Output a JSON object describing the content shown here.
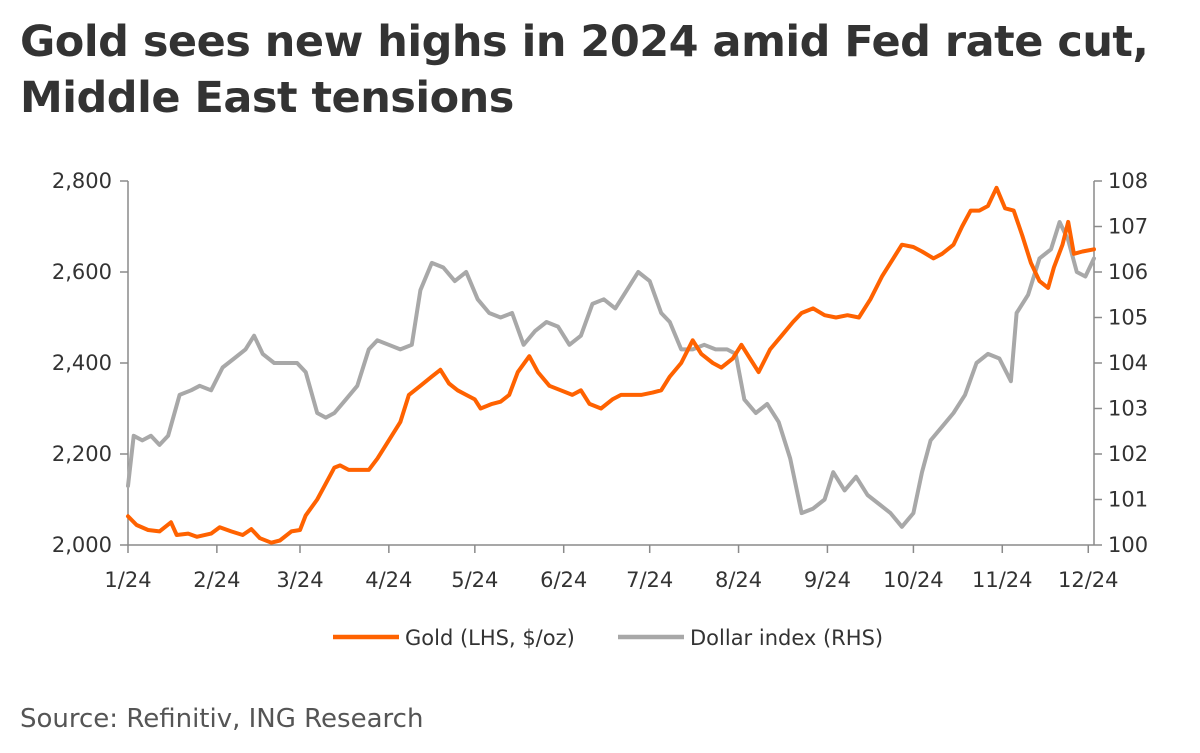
{
  "chart_data": {
    "type": "line",
    "title": "Gold sees new highs in 2024 amid Fed rate cut, Middle East tensions",
    "source": "Source: Refinitiv, ING Research",
    "x_tick_labels": [
      "1/24",
      "2/24",
      "3/24",
      "4/24",
      "5/24",
      "6/24",
      "7/24",
      "8/24",
      "9/24",
      "10/24",
      "11/24",
      "12/24"
    ],
    "x_range": [
      "2024-01-01",
      "2024-12-03"
    ],
    "y_left": {
      "ticks": [
        2000,
        2200,
        2400,
        2600,
        2800
      ],
      "tick_labels": [
        "2,000",
        "2,200",
        "2,400",
        "2,600",
        "2,800"
      ],
      "ylim": [
        2000,
        2800
      ]
    },
    "y_right": {
      "ticks": [
        100,
        101,
        102,
        103,
        104,
        105,
        106,
        107,
        108
      ],
      "tick_labels": [
        "100",
        "101",
        "102",
        "103",
        "104",
        "105",
        "106",
        "107",
        "108"
      ],
      "ylim": [
        100,
        108
      ]
    },
    "grid": false,
    "legend_position": "bottom",
    "series": [
      {
        "name": "Gold (LHS, $/oz)",
        "axis": "left",
        "color": "#ff6200",
        "points": [
          [
            "2024-01-01",
            2063
          ],
          [
            "2024-01-04",
            2044
          ],
          [
            "2024-01-08",
            2033
          ],
          [
            "2024-01-12",
            2030
          ],
          [
            "2024-01-16",
            2050
          ],
          [
            "2024-01-18",
            2022
          ],
          [
            "2024-01-22",
            2025
          ],
          [
            "2024-01-25",
            2018
          ],
          [
            "2024-01-30",
            2025
          ],
          [
            "2024-02-02",
            2039
          ],
          [
            "2024-02-06",
            2030
          ],
          [
            "2024-02-10",
            2022
          ],
          [
            "2024-02-13",
            2035
          ],
          [
            "2024-02-16",
            2015
          ],
          [
            "2024-02-20",
            2005
          ],
          [
            "2024-02-23",
            2010
          ],
          [
            "2024-02-27",
            2030
          ],
          [
            "2024-03-01",
            2033
          ],
          [
            "2024-03-03",
            2065
          ],
          [
            "2024-03-07",
            2100
          ],
          [
            "2024-03-10",
            2135
          ],
          [
            "2024-03-13",
            2170
          ],
          [
            "2024-03-15",
            2175
          ],
          [
            "2024-03-18",
            2165
          ],
          [
            "2024-03-22",
            2165
          ],
          [
            "2024-03-25",
            2165
          ],
          [
            "2024-03-28",
            2190
          ],
          [
            "2024-04-01",
            2230
          ],
          [
            "2024-04-05",
            2270
          ],
          [
            "2024-04-08",
            2330
          ],
          [
            "2024-04-12",
            2350
          ],
          [
            "2024-04-16",
            2370
          ],
          [
            "2024-04-19",
            2385
          ],
          [
            "2024-04-22",
            2355
          ],
          [
            "2024-04-25",
            2340
          ],
          [
            "2024-04-28",
            2330
          ],
          [
            "2024-05-01",
            2320
          ],
          [
            "2024-05-03",
            2300
          ],
          [
            "2024-05-07",
            2310
          ],
          [
            "2024-05-10",
            2315
          ],
          [
            "2024-05-13",
            2330
          ],
          [
            "2024-05-16",
            2380
          ],
          [
            "2024-05-20",
            2415
          ],
          [
            "2024-05-23",
            2380
          ],
          [
            "2024-05-27",
            2350
          ],
          [
            "2024-05-31",
            2340
          ],
          [
            "2024-06-04",
            2330
          ],
          [
            "2024-06-07",
            2340
          ],
          [
            "2024-06-10",
            2310
          ],
          [
            "2024-06-14",
            2300
          ],
          [
            "2024-06-18",
            2320
          ],
          [
            "2024-06-21",
            2330
          ],
          [
            "2024-06-24",
            2330
          ],
          [
            "2024-06-28",
            2330
          ],
          [
            "2024-07-02",
            2335
          ],
          [
            "2024-07-05",
            2340
          ],
          [
            "2024-07-08",
            2370
          ],
          [
            "2024-07-12",
            2400
          ],
          [
            "2024-07-16",
            2450
          ],
          [
            "2024-07-19",
            2420
          ],
          [
            "2024-07-23",
            2400
          ],
          [
            "2024-07-26",
            2390
          ],
          [
            "2024-07-30",
            2410
          ],
          [
            "2024-08-02",
            2440
          ],
          [
            "2024-08-05",
            2410
          ],
          [
            "2024-08-08",
            2380
          ],
          [
            "2024-08-12",
            2430
          ],
          [
            "2024-08-16",
            2460
          ],
          [
            "2024-08-20",
            2490
          ],
          [
            "2024-08-23",
            2510
          ],
          [
            "2024-08-27",
            2520
          ],
          [
            "2024-08-31",
            2505
          ],
          [
            "2024-09-04",
            2500
          ],
          [
            "2024-09-08",
            2505
          ],
          [
            "2024-09-12",
            2500
          ],
          [
            "2024-09-16",
            2540
          ],
          [
            "2024-09-20",
            2590
          ],
          [
            "2024-09-24",
            2630
          ],
          [
            "2024-09-27",
            2660
          ],
          [
            "2024-10-01",
            2655
          ],
          [
            "2024-10-04",
            2645
          ],
          [
            "2024-10-08",
            2630
          ],
          [
            "2024-10-11",
            2640
          ],
          [
            "2024-10-15",
            2660
          ],
          [
            "2024-10-18",
            2700
          ],
          [
            "2024-10-21",
            2735
          ],
          [
            "2024-10-24",
            2735
          ],
          [
            "2024-10-27",
            2745
          ],
          [
            "2024-10-30",
            2785
          ],
          [
            "2024-11-02",
            2740
          ],
          [
            "2024-11-05",
            2735
          ],
          [
            "2024-11-08",
            2680
          ],
          [
            "2024-11-11",
            2620
          ],
          [
            "2024-11-14",
            2580
          ],
          [
            "2024-11-17",
            2565
          ],
          [
            "2024-11-19",
            2610
          ],
          [
            "2024-11-22",
            2660
          ],
          [
            "2024-11-24",
            2710
          ],
          [
            "2024-11-26",
            2640
          ],
          [
            "2024-11-29",
            2645
          ],
          [
            "2024-12-03",
            2650
          ]
        ]
      },
      {
        "name": "Dollar index (RHS)",
        "axis": "right",
        "color": "#a8a8a8",
        "points": [
          [
            "2024-01-01",
            101.3
          ],
          [
            "2024-01-03",
            102.4
          ],
          [
            "2024-01-06",
            102.3
          ],
          [
            "2024-01-09",
            102.4
          ],
          [
            "2024-01-12",
            102.2
          ],
          [
            "2024-01-15",
            102.4
          ],
          [
            "2024-01-19",
            103.3
          ],
          [
            "2024-01-23",
            103.4
          ],
          [
            "2024-01-26",
            103.5
          ],
          [
            "2024-01-30",
            103.4
          ],
          [
            "2024-02-03",
            103.9
          ],
          [
            "2024-02-07",
            104.1
          ],
          [
            "2024-02-11",
            104.3
          ],
          [
            "2024-02-14",
            104.6
          ],
          [
            "2024-02-17",
            104.2
          ],
          [
            "2024-02-21",
            104.0
          ],
          [
            "2024-02-25",
            104.0
          ],
          [
            "2024-02-29",
            104.0
          ],
          [
            "2024-03-03",
            103.8
          ],
          [
            "2024-03-07",
            102.9
          ],
          [
            "2024-03-10",
            102.8
          ],
          [
            "2024-03-13",
            102.9
          ],
          [
            "2024-03-17",
            103.2
          ],
          [
            "2024-03-21",
            103.5
          ],
          [
            "2024-03-25",
            104.3
          ],
          [
            "2024-03-28",
            104.5
          ],
          [
            "2024-04-01",
            104.4
          ],
          [
            "2024-04-05",
            104.3
          ],
          [
            "2024-04-09",
            104.4
          ],
          [
            "2024-04-12",
            105.6
          ],
          [
            "2024-04-16",
            106.2
          ],
          [
            "2024-04-20",
            106.1
          ],
          [
            "2024-04-24",
            105.8
          ],
          [
            "2024-04-28",
            106.0
          ],
          [
            "2024-05-02",
            105.4
          ],
          [
            "2024-05-06",
            105.1
          ],
          [
            "2024-05-10",
            105.0
          ],
          [
            "2024-05-14",
            105.1
          ],
          [
            "2024-05-18",
            104.4
          ],
          [
            "2024-05-22",
            104.7
          ],
          [
            "2024-05-26",
            104.9
          ],
          [
            "2024-05-30",
            104.8
          ],
          [
            "2024-06-03",
            104.4
          ],
          [
            "2024-06-07",
            104.6
          ],
          [
            "2024-06-11",
            105.3
          ],
          [
            "2024-06-15",
            105.4
          ],
          [
            "2024-06-19",
            105.2
          ],
          [
            "2024-06-23",
            105.6
          ],
          [
            "2024-06-27",
            106.0
          ],
          [
            "2024-07-01",
            105.8
          ],
          [
            "2024-07-05",
            105.1
          ],
          [
            "2024-07-08",
            104.9
          ],
          [
            "2024-07-12",
            104.3
          ],
          [
            "2024-07-16",
            104.3
          ],
          [
            "2024-07-20",
            104.4
          ],
          [
            "2024-07-24",
            104.3
          ],
          [
            "2024-07-28",
            104.3
          ],
          [
            "2024-07-31",
            104.2
          ],
          [
            "2024-08-03",
            103.2
          ],
          [
            "2024-08-07",
            102.9
          ],
          [
            "2024-08-11",
            103.1
          ],
          [
            "2024-08-15",
            102.7
          ],
          [
            "2024-08-19",
            101.9
          ],
          [
            "2024-08-23",
            100.7
          ],
          [
            "2024-08-27",
            100.8
          ],
          [
            "2024-08-31",
            101.0
          ],
          [
            "2024-09-03",
            101.6
          ],
          [
            "2024-09-07",
            101.2
          ],
          [
            "2024-09-11",
            101.5
          ],
          [
            "2024-09-15",
            101.1
          ],
          [
            "2024-09-19",
            100.9
          ],
          [
            "2024-09-23",
            100.7
          ],
          [
            "2024-09-27",
            100.4
          ],
          [
            "2024-10-01",
            100.7
          ],
          [
            "2024-10-04",
            101.6
          ],
          [
            "2024-10-07",
            102.3
          ],
          [
            "2024-10-11",
            102.6
          ],
          [
            "2024-10-15",
            102.9
          ],
          [
            "2024-10-19",
            103.3
          ],
          [
            "2024-10-23",
            104.0
          ],
          [
            "2024-10-27",
            104.2
          ],
          [
            "2024-10-31",
            104.1
          ],
          [
            "2024-11-04",
            103.6
          ],
          [
            "2024-11-06",
            105.1
          ],
          [
            "2024-11-10",
            105.5
          ],
          [
            "2024-11-14",
            106.3
          ],
          [
            "2024-11-18",
            106.5
          ],
          [
            "2024-11-21",
            107.1
          ],
          [
            "2024-11-24",
            106.7
          ],
          [
            "2024-11-27",
            106.0
          ],
          [
            "2024-11-30",
            105.9
          ],
          [
            "2024-12-03",
            106.3
          ]
        ]
      }
    ]
  }
}
